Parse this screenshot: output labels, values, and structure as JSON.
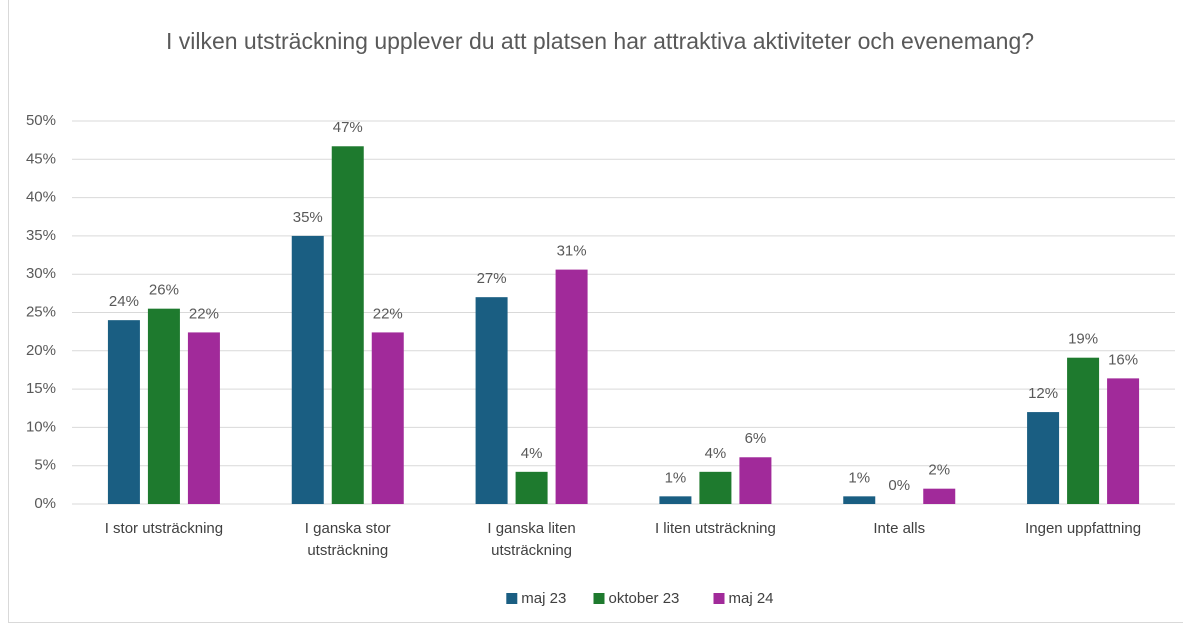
{
  "chart_data": {
    "type": "bar",
    "title": "I vilken utsträckning upplever du att platsen har attraktiva aktiviteter och evenemang?",
    "categories": [
      "I stor utsträckning",
      "I ganska stor utsträckning",
      "I ganska liten utsträckning",
      "I liten utsträckning",
      "Inte alls",
      "Ingen uppfattning"
    ],
    "series": [
      {
        "name": "maj 23",
        "color": "#1a5e82",
        "values": [
          24,
          35,
          27,
          1,
          1,
          12
        ],
        "value_labels": [
          "24%",
          "35%",
          "27%",
          "1%",
          "1%",
          "12%"
        ]
      },
      {
        "name": "oktober 23",
        "color": "#1e7a2e",
        "values": [
          25.5,
          46.7,
          4.2,
          4.2,
          0,
          19.1
        ],
        "value_labels": [
          "26%",
          "47%",
          "4%",
          "4%",
          "0%",
          "19%"
        ]
      },
      {
        "name": "maj 24",
        "color": "#a12a9a",
        "values": [
          22.4,
          22.4,
          30.6,
          6.1,
          2,
          16.4
        ],
        "value_labels": [
          "22%",
          "22%",
          "31%",
          "6%",
          "2%",
          "16%"
        ]
      }
    ],
    "ylim": [
      0,
      50
    ],
    "yticks": [
      {
        "value": 0,
        "label": "0%"
      },
      {
        "value": 5,
        "label": "5%"
      },
      {
        "value": 10,
        "label": "10%"
      },
      {
        "value": 15,
        "label": "15%"
      },
      {
        "value": 20,
        "label": "20%"
      },
      {
        "value": 25,
        "label": "25%"
      },
      {
        "value": 30,
        "label": "30%"
      },
      {
        "value": 35,
        "label": "35%"
      },
      {
        "value": 40,
        "label": "40%"
      },
      {
        "value": 45,
        "label": "45%"
      },
      {
        "value": 50,
        "label": "50%"
      }
    ],
    "grid": true,
    "legend": "bottom"
  }
}
